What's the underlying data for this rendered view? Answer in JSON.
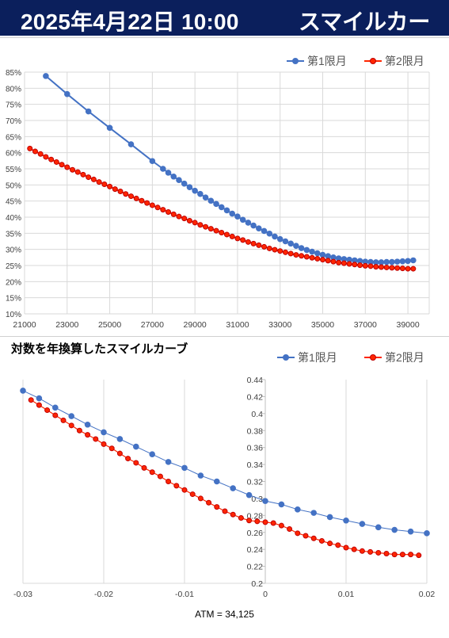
{
  "header": {
    "date": "2025年4月22日 10:00",
    "title": "スマイルカーブ"
  },
  "colors": {
    "header_bg": "#0b1f5c",
    "series1": "#4472c4",
    "series2": "#ff2600"
  },
  "chart_data": [
    {
      "type": "line",
      "title": "",
      "legend_position": "top-right",
      "grid": true,
      "xlim": [
        21000,
        40000
      ],
      "ylim": [
        0.1,
        0.85
      ],
      "x_ticks": [
        "21000",
        "23000",
        "25000",
        "27000",
        "29000",
        "31000",
        "33000",
        "35000",
        "37000",
        "39000"
      ],
      "y_ticks": [
        "10%",
        "15%",
        "20%",
        "25%",
        "30%",
        "35%",
        "40%",
        "45%",
        "50%",
        "55%",
        "60%",
        "65%",
        "70%",
        "75%",
        "80%",
        "85%"
      ],
      "series": [
        {
          "name": "第1限月",
          "x": [
            22000,
            23000,
            24000,
            25000,
            26000,
            27000,
            27500,
            27750,
            28000,
            28250,
            28500,
            28750,
            29000,
            29250,
            29500,
            29750,
            30000,
            30250,
            30500,
            30750,
            31000,
            31250,
            31500,
            31750,
            32000,
            32250,
            32500,
            32750,
            33000,
            33250,
            33500,
            33750,
            34000,
            34250,
            34500,
            34750,
            35000,
            35250,
            35500,
            35750,
            36000,
            36250,
            36500,
            36750,
            37000,
            37250,
            37500,
            37750,
            38000,
            38250,
            38500,
            38750,
            39000,
            39250
          ],
          "y": [
            0.838,
            0.782,
            0.728,
            0.677,
            0.626,
            0.574,
            0.55,
            0.538,
            0.526,
            0.515,
            0.504,
            0.493,
            0.482,
            0.472,
            0.461,
            0.451,
            0.441,
            0.431,
            0.421,
            0.411,
            0.402,
            0.392,
            0.383,
            0.374,
            0.365,
            0.357,
            0.349,
            0.34,
            0.332,
            0.325,
            0.318,
            0.311,
            0.304,
            0.298,
            0.293,
            0.288,
            0.283,
            0.279,
            0.275,
            0.272,
            0.27,
            0.268,
            0.266,
            0.264,
            0.262,
            0.261,
            0.26,
            0.26,
            0.261,
            0.261,
            0.262,
            0.263,
            0.264,
            0.266
          ]
        },
        {
          "name": "第2限月",
          "x": [
            21250,
            21500,
            21750,
            22000,
            22250,
            22500,
            22750,
            23000,
            23250,
            23500,
            23750,
            24000,
            24250,
            24500,
            24750,
            25000,
            25250,
            25500,
            25750,
            26000,
            26250,
            26500,
            26750,
            27000,
            27250,
            27500,
            27750,
            28000,
            28250,
            28500,
            28750,
            29000,
            29250,
            29500,
            29750,
            30000,
            30250,
            30500,
            30750,
            31000,
            31250,
            31500,
            31750,
            32000,
            32250,
            32500,
            32750,
            33000,
            33250,
            33500,
            33750,
            34000,
            34250,
            34500,
            34750,
            35000,
            35250,
            35500,
            35750,
            36000,
            36250,
            36500,
            36750,
            37000,
            37250,
            37500,
            37750,
            38000,
            38250,
            38500,
            38750,
            39000,
            39250
          ],
          "y": [
            0.613,
            0.604,
            0.596,
            0.587,
            0.579,
            0.571,
            0.563,
            0.555,
            0.547,
            0.54,
            0.532,
            0.524,
            0.517,
            0.509,
            0.502,
            0.495,
            0.487,
            0.48,
            0.472,
            0.465,
            0.458,
            0.451,
            0.444,
            0.437,
            0.43,
            0.423,
            0.416,
            0.409,
            0.402,
            0.396,
            0.389,
            0.383,
            0.376,
            0.37,
            0.364,
            0.358,
            0.352,
            0.346,
            0.34,
            0.334,
            0.329,
            0.323,
            0.318,
            0.313,
            0.308,
            0.303,
            0.299,
            0.295,
            0.291,
            0.287,
            0.283,
            0.28,
            0.277,
            0.274,
            0.271,
            0.268,
            0.265,
            0.262,
            0.259,
            0.257,
            0.255,
            0.253,
            0.251,
            0.249,
            0.248,
            0.246,
            0.245,
            0.244,
            0.243,
            0.242,
            0.241,
            0.24,
            0.24
          ]
        }
      ]
    },
    {
      "type": "line",
      "title": "対数を年換算したスマイルカーブ",
      "legend_position": "top-right",
      "grid": true,
      "xlim": [
        -0.03,
        0.02
      ],
      "ylim": [
        0.2,
        0.44
      ],
      "x_ticks": [
        "-0.03",
        "-0.02",
        "-0.01",
        "0",
        "0.01",
        "0.02"
      ],
      "y_ticks": [
        "0.2",
        "0.22",
        "0.24",
        "0.26",
        "0.28",
        "0.3",
        "0.32",
        "0.34",
        "0.36",
        "0.38",
        "0.4",
        "0.42",
        "0.44"
      ],
      "xlabel": "ATM = 34,125",
      "series": [
        {
          "name": "第1限月",
          "x": [
            -0.03,
            -0.028,
            -0.026,
            -0.024,
            -0.022,
            -0.02,
            -0.018,
            -0.016,
            -0.014,
            -0.012,
            -0.01,
            -0.008,
            -0.006,
            -0.004,
            -0.002,
            0.0,
            0.002,
            0.004,
            0.006,
            0.008,
            0.01,
            0.012,
            0.014,
            0.016,
            0.018,
            0.02
          ],
          "y": [
            0.427,
            0.418,
            0.407,
            0.397,
            0.387,
            0.378,
            0.37,
            0.361,
            0.352,
            0.343,
            0.336,
            0.327,
            0.32,
            0.312,
            0.304,
            0.297,
            0.293,
            0.287,
            0.283,
            0.278,
            0.274,
            0.27,
            0.266,
            0.263,
            0.261,
            0.259
          ]
        },
        {
          "name": "第2限月",
          "x": [
            -0.029,
            -0.028,
            -0.027,
            -0.026,
            -0.025,
            -0.024,
            -0.023,
            -0.022,
            -0.021,
            -0.02,
            -0.019,
            -0.018,
            -0.017,
            -0.016,
            -0.015,
            -0.014,
            -0.013,
            -0.012,
            -0.011,
            -0.01,
            -0.009,
            -0.008,
            -0.007,
            -0.006,
            -0.005,
            -0.004,
            -0.003,
            -0.002,
            -0.001,
            0.0,
            0.001,
            0.002,
            0.003,
            0.004,
            0.005,
            0.006,
            0.007,
            0.008,
            0.009,
            0.01,
            0.011,
            0.012,
            0.013,
            0.014,
            0.015,
            0.016,
            0.017,
            0.018,
            0.019
          ],
          "y": [
            0.416,
            0.41,
            0.404,
            0.398,
            0.392,
            0.386,
            0.38,
            0.375,
            0.37,
            0.364,
            0.359,
            0.353,
            0.347,
            0.342,
            0.336,
            0.331,
            0.326,
            0.32,
            0.315,
            0.31,
            0.305,
            0.3,
            0.295,
            0.29,
            0.285,
            0.281,
            0.277,
            0.274,
            0.273,
            0.272,
            0.271,
            0.268,
            0.264,
            0.259,
            0.256,
            0.253,
            0.25,
            0.247,
            0.245,
            0.242,
            0.24,
            0.238,
            0.237,
            0.236,
            0.235,
            0.234,
            0.234,
            0.234,
            0.233
          ]
        }
      ]
    }
  ]
}
